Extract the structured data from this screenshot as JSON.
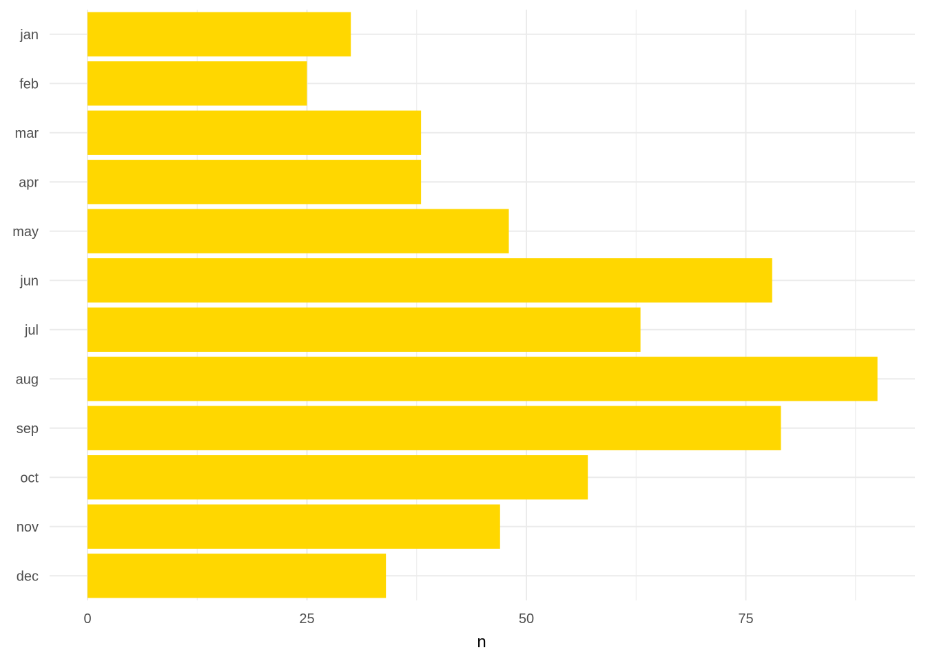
{
  "chart_data": {
    "type": "bar",
    "orientation": "horizontal",
    "categories": [
      "jan",
      "feb",
      "mar",
      "apr",
      "may",
      "jun",
      "jul",
      "aug",
      "sep",
      "oct",
      "nov",
      "dec"
    ],
    "values": [
      30,
      25,
      38,
      38,
      48,
      78,
      63,
      90,
      79,
      57,
      47,
      34
    ],
    "title": "",
    "xlabel": "n",
    "ylabel": "",
    "xlim": [
      0,
      94
    ],
    "x_ticks": [
      0,
      25,
      50,
      75
    ],
    "x_tick_labels": [
      "0",
      "25",
      "50",
      "75"
    ],
    "grid": true,
    "bar_color": "#FFD700"
  }
}
